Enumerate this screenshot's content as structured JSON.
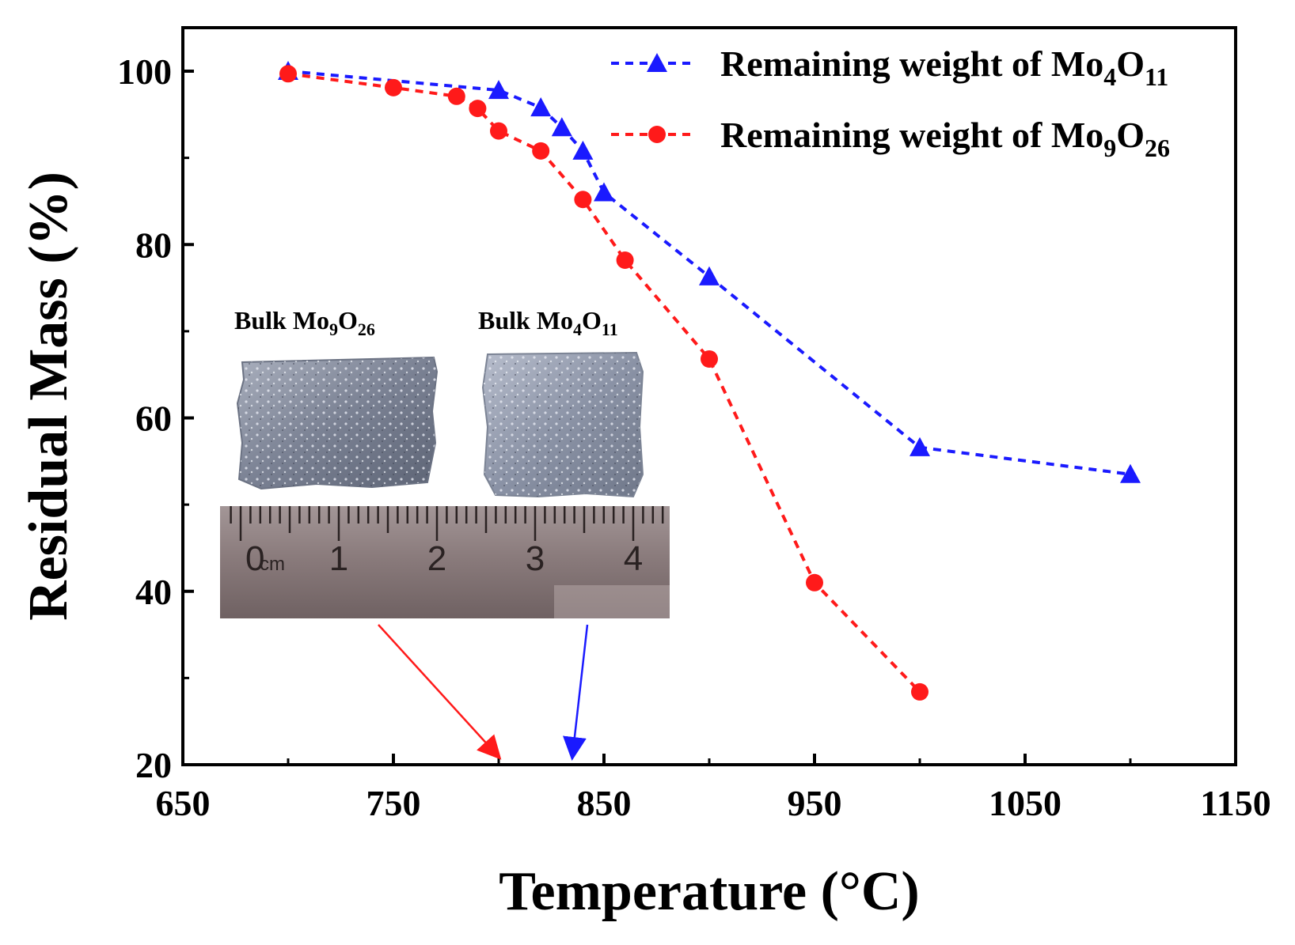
{
  "chart_data": {
    "type": "line",
    "title": "",
    "xlabel": "Temperature (°C)",
    "ylabel": "Residual Mass (%)",
    "xlim": [
      650,
      1150
    ],
    "ylim": [
      20,
      105
    ],
    "xticks": [
      650,
      750,
      850,
      950,
      1050,
      1150
    ],
    "yticks": [
      20,
      40,
      60,
      80,
      100
    ],
    "series": [
      {
        "name": "Remaining weight of Mo4O11",
        "legend_prefix": "Remaining weight of Mo",
        "sub1": "4",
        "mid": "O",
        "sub2": "11",
        "color": "#1a1aff",
        "marker": "triangle",
        "x": [
          700,
          800,
          820,
          830,
          840,
          850,
          900,
          1000,
          1100
        ],
        "y": [
          100,
          97.8,
          95.8,
          93.5,
          90.8,
          86,
          76.3,
          56.6,
          53.5
        ]
      },
      {
        "name": "Remaining weight of Mo9O26",
        "legend_prefix": "Remaining weight of Mo",
        "sub1": "9",
        "mid": "O",
        "sub2": "26",
        "color": "#ff1a1a",
        "marker": "circle",
        "x": [
          700,
          750,
          780,
          790,
          800,
          820,
          840,
          860,
          900,
          950,
          1000
        ],
        "y": [
          99.7,
          98.1,
          97.1,
          95.7,
          93.1,
          90.8,
          85.2,
          78.2,
          66.8,
          41.0,
          28.4
        ]
      }
    ],
    "annotations": {
      "inset_label_left": {
        "prefix": "Bulk Mo",
        "sub1": "9",
        "mid": "O",
        "sub2": "26"
      },
      "inset_label_right": {
        "prefix": "Bulk Mo",
        "sub1": "4",
        "mid": "O",
        "sub2": "11"
      },
      "ruler_labels": [
        "0",
        "1",
        "2",
        "3",
        "4"
      ],
      "ruler_unit": "cm",
      "arrow_targets": [
        {
          "series": "Mo9O26",
          "x": 800,
          "color": "#ff1a1a"
        },
        {
          "series": "Mo4O11",
          "x": 835,
          "color": "#1a1aff"
        }
      ]
    }
  }
}
